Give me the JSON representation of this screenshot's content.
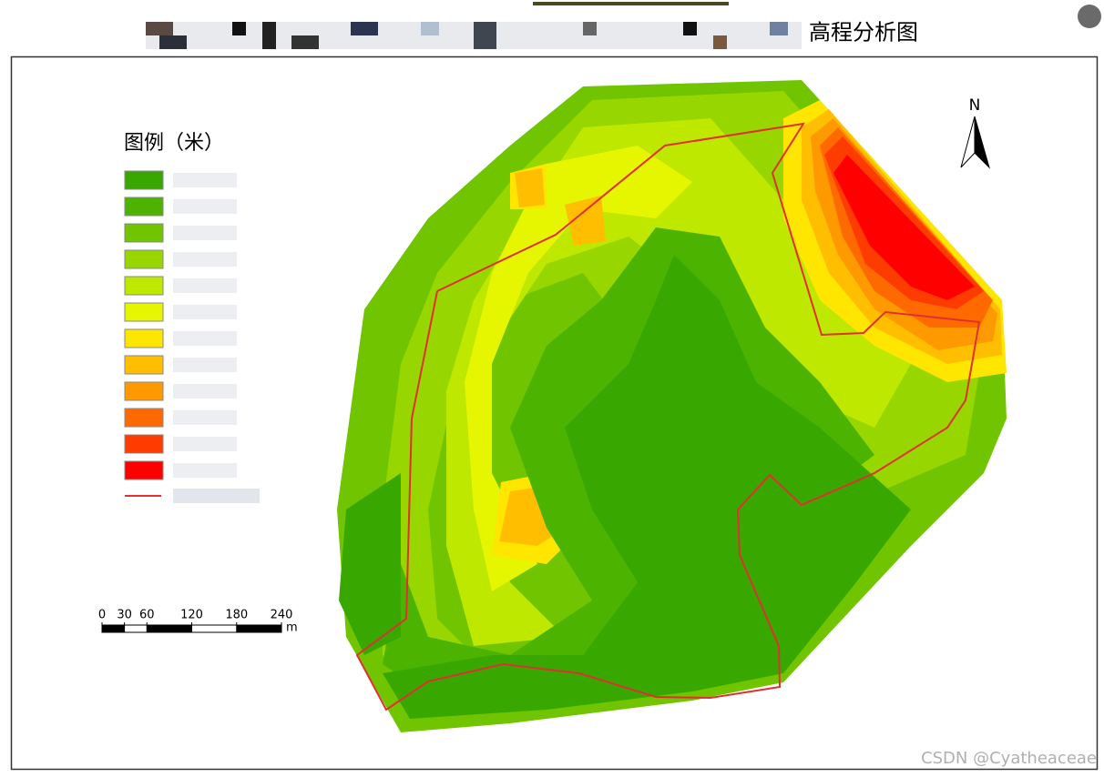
{
  "title": "高程分析图",
  "legend": {
    "title": "图例（米）",
    "colors": [
      "#38a800",
      "#4cb400",
      "#70c400",
      "#98d600",
      "#bee800",
      "#e6f500",
      "#ffe600",
      "#ffbe00",
      "#ff9900",
      "#ff6a00",
      "#ff3c00",
      "#ff0000"
    ],
    "boundary_color": "#e03030"
  },
  "north": "N",
  "scale_bar": {
    "ticks": [
      0,
      30,
      60,
      120,
      180,
      240
    ],
    "unit": "m"
  },
  "watermark": "CSDN @Cyatheaceae"
}
